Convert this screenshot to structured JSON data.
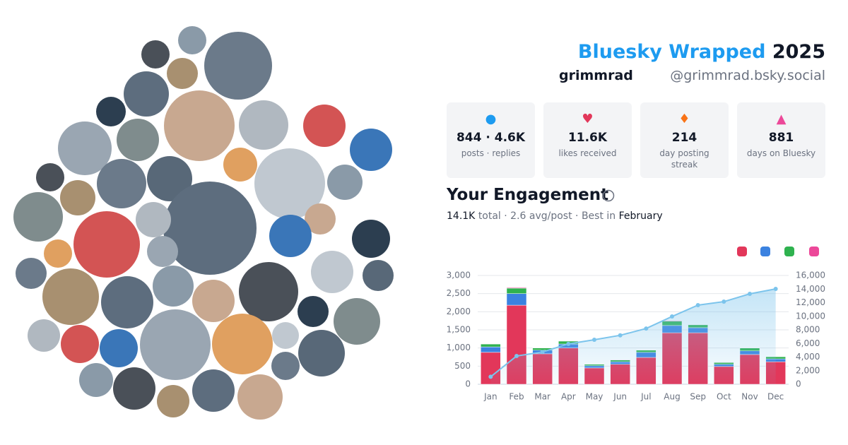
{
  "header": {
    "brand": "Bluesky Wrapped",
    "year": "2025",
    "name": "grimmrad",
    "handle": "@grimmrad.bsky.social"
  },
  "stats": [
    {
      "value": "844 · 4.6K",
      "label": "posts · replies"
    },
    {
      "value": "11.6K",
      "label": "likes received"
    },
    {
      "value": "214",
      "label": "day posting streak"
    },
    {
      "value": "881",
      "label": "days on Bluesky"
    }
  ],
  "engagement": {
    "title": "Your Engagement",
    "total": "14.1K",
    "summary": "total · 2.6 avg/post · Best in",
    "best": "February"
  },
  "chart_data": {
    "type": "bar",
    "stacked": true,
    "grid": true,
    "categories": [
      "Jan",
      "Feb",
      "Mar",
      "Apr",
      "May",
      "Jun",
      "Jul",
      "Aug",
      "Sep",
      "Oct",
      "Nov",
      "Dec"
    ],
    "series": [
      {
        "color": "#e2375a",
        "values": [
          880,
          2180,
          840,
          1000,
          450,
          550,
          740,
          1420,
          1420,
          490,
          820,
          620
        ]
      },
      {
        "color": "#3b82e0",
        "values": [
          150,
          320,
          100,
          110,
          60,
          70,
          140,
          200,
          140,
          60,
          100,
          80
        ]
      },
      {
        "color": "#2fb24f",
        "values": [
          80,
          150,
          60,
          80,
          40,
          50,
          60,
          120,
          80,
          50,
          80,
          60
        ]
      },
      {
        "color": "#ec4899",
        "values": [
          10,
          20,
          10,
          10,
          5,
          5,
          10,
          15,
          10,
          5,
          10,
          5
        ]
      },
      {
        "color": "#7cc4ec",
        "axis": "y2",
        "values": [
          1100,
          4150,
          4750,
          5940,
          6550,
          7200,
          8200,
          9970,
          11640,
          12150,
          13300,
          14030
        ]
      }
    ],
    "ylim": [
      0,
      3000
    ],
    "yticks": [
      0,
      500,
      {
        "value": 1000,
        "label": "1,000"
      },
      {
        "value": 1500,
        "label": "1,500"
      },
      {
        "value": 2000,
        "label": "2,000"
      },
      {
        "value": 2500,
        "label": "2,500"
      },
      {
        "value": 3000,
        "label": "3,000"
      }
    ],
    "y2lim": [
      0,
      16000
    ],
    "y2ticks": [
      0,
      {
        "value": 2000,
        "label": "2,000"
      },
      {
        "value": 4000,
        "label": "4,000"
      },
      {
        "value": 6000,
        "label": "6,000"
      },
      {
        "value": 8000,
        "label": "8,000"
      },
      {
        "value": 10000,
        "label": "10,000"
      },
      {
        "value": 12000,
        "label": "12,000"
      },
      {
        "value": 14000,
        "label": "14,000"
      },
      {
        "value": 16000,
        "label": "16,000"
      }
    ]
  }
}
